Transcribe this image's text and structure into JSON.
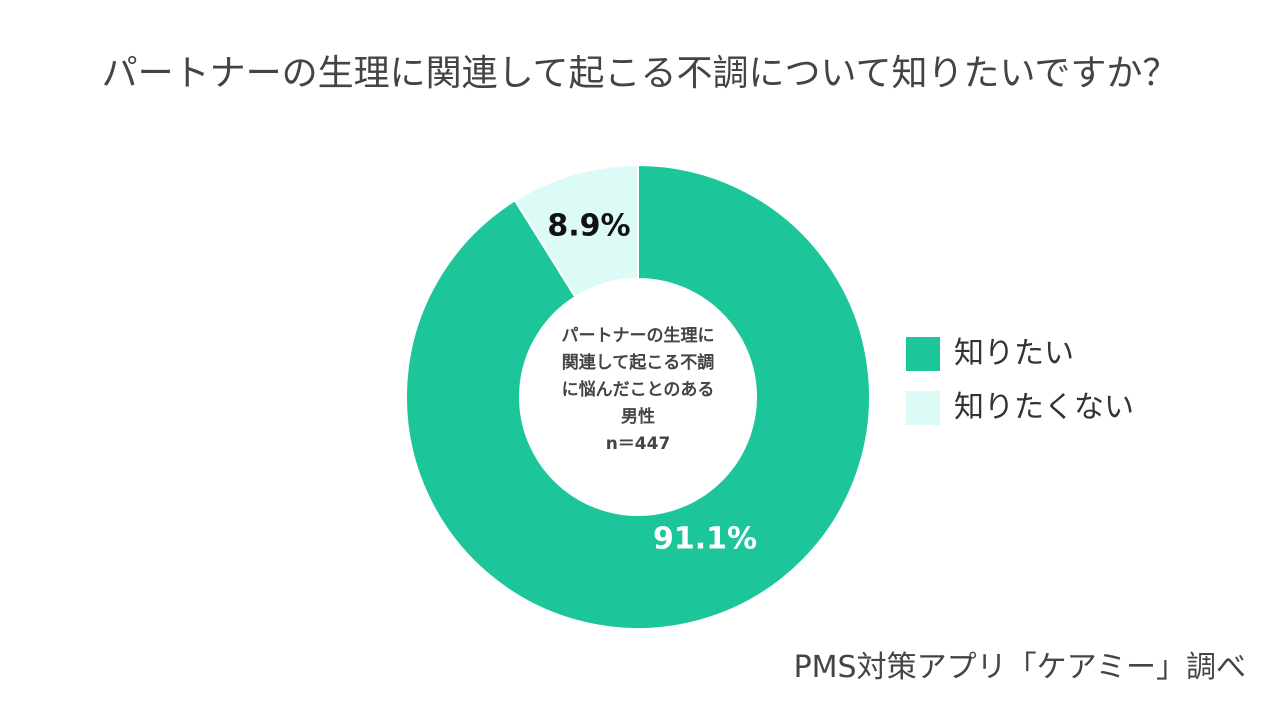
{
  "chart_data": {
    "type": "pie",
    "title": "パートナーの生理に関連して起こる不調について知りたいですか？",
    "categories": [
      "知りたい",
      "知りたくない"
    ],
    "values": [
      91.1,
      8.9
    ],
    "value_labels": [
      "91.1%",
      "8.9%"
    ],
    "colors": [
      "#1dc59b",
      "#dcfaf6"
    ],
    "legend_position": "right",
    "center_label": {
      "lines": [
        "パートナーの生理に",
        "関連して起こる不調",
        "に悩んだことのある",
        "男性",
        "n＝447"
      ]
    }
  },
  "source": "PMS対策アプリ「ケアミー」調べ"
}
